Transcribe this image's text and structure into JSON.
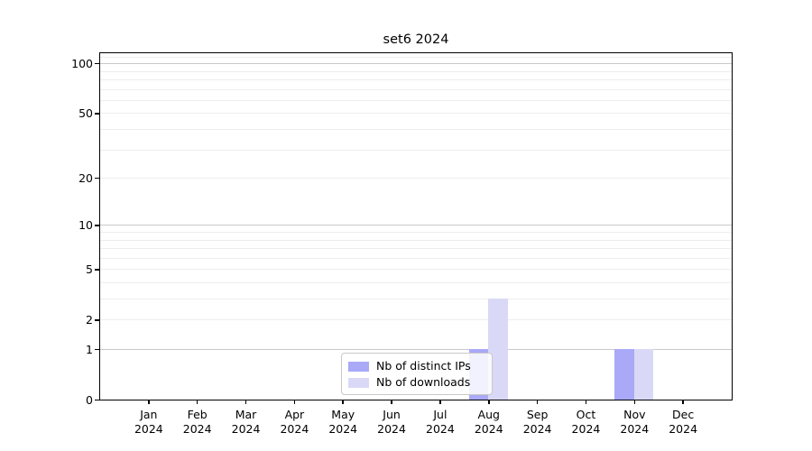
{
  "window": {
    "background": "#ffffff"
  },
  "chart_data": {
    "type": "bar",
    "title": "set6 2024",
    "categories": [
      "Jan 2024",
      "Feb 2024",
      "Mar 2024",
      "Apr 2024",
      "May 2024",
      "Jun 2024",
      "Jul 2024",
      "Aug 2024",
      "Sep 2024",
      "Oct 2024",
      "Nov 2024",
      "Dec 2024"
    ],
    "x_ticklabels": [
      [
        "Jan",
        "2024"
      ],
      [
        "Feb",
        "2024"
      ],
      [
        "Mar",
        "2024"
      ],
      [
        "Apr",
        "2024"
      ],
      [
        "May",
        "2024"
      ],
      [
        "Jun",
        "2024"
      ],
      [
        "Jul",
        "2024"
      ],
      [
        "Aug",
        "2024"
      ],
      [
        "Sep",
        "2024"
      ],
      [
        "Oct",
        "2024"
      ],
      [
        "Nov",
        "2024"
      ],
      [
        "Dec",
        "2024"
      ]
    ],
    "series": [
      {
        "name": "Nb of distinct IPs",
        "color": "#a9a9f7",
        "values": [
          0,
          0,
          0,
          0,
          0,
          0,
          0,
          1,
          0,
          0,
          1,
          0
        ]
      },
      {
        "name": "Nb of downloads",
        "color": "#d9d9f7",
        "values": [
          0,
          0,
          0,
          0,
          0,
          0,
          0,
          3,
          0,
          0,
          1,
          0
        ]
      }
    ],
    "xlabel": "",
    "ylabel": "",
    "yscale": "log1p",
    "ylim": [
      0,
      115
    ],
    "y_ticks": [
      0,
      1,
      2,
      5,
      10,
      20,
      50,
      100
    ],
    "grid": {
      "major": [
        1,
        10,
        100
      ],
      "minor": [
        2,
        3,
        4,
        5,
        6,
        7,
        8,
        9,
        20,
        30,
        40,
        50,
        60,
        70,
        80,
        90,
        110
      ],
      "major_color": "#c9c9c9",
      "minor_color": "#ededed"
    },
    "legend": {
      "position": "lower center"
    }
  }
}
